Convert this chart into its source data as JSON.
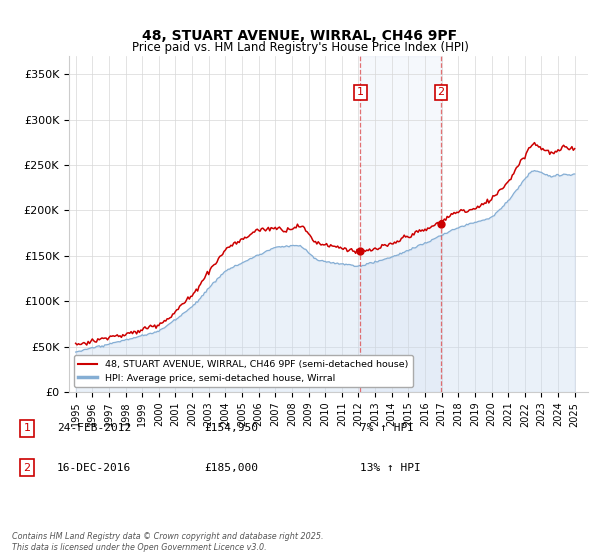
{
  "title": "48, STUART AVENUE, WIRRAL, CH46 9PF",
  "subtitle": "Price paid vs. HM Land Registry's House Price Index (HPI)",
  "property_color": "#cc0000",
  "hpi_fill_color": "#c5d8f0",
  "hpi_line_color": "#85aed4",
  "vline_color": "#dd4444",
  "purchase1_x": 2012.12,
  "purchase1_y": 154950,
  "purchase1_label": "1",
  "purchase1_date": "24-FEB-2012",
  "purchase1_price": "£154,950",
  "purchase1_note": "7% ↑ HPI",
  "purchase2_x": 2016.96,
  "purchase2_y": 185000,
  "purchase2_label": "2",
  "purchase2_date": "16-DEC-2016",
  "purchase2_price": "£185,000",
  "purchase2_note": "13% ↑ HPI",
  "legend_property": "48, STUART AVENUE, WIRRAL, CH46 9PF (semi-detached house)",
  "legend_hpi": "HPI: Average price, semi-detached house, Wirral",
  "footnote": "Contains HM Land Registry data © Crown copyright and database right 2025.\nThis data is licensed under the Open Government Licence v3.0.",
  "ylim": [
    0,
    370000
  ],
  "yticks": [
    0,
    50000,
    100000,
    150000,
    200000,
    250000,
    300000,
    350000
  ],
  "ytick_labels": [
    "£0",
    "£50K",
    "£100K",
    "£150K",
    "£200K",
    "£250K",
    "£300K",
    "£350K"
  ],
  "xmin": 1994.6,
  "xmax": 2025.8
}
